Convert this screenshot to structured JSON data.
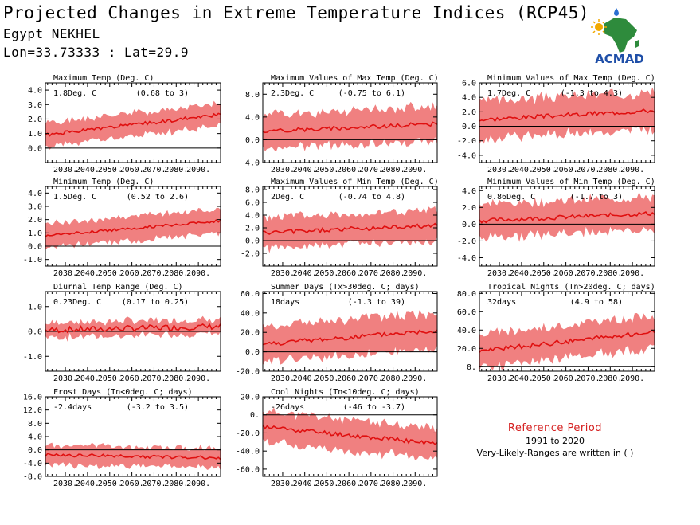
{
  "header": {
    "title": "Projected Changes in Extreme Temperature Indices (RCP45)",
    "station": "Egypt_NEKHEL",
    "coords": "Lon=33.73333 : Lat=29.9"
  },
  "logo": {
    "text": "ACMAD",
    "icon": "africa-map-logo"
  },
  "reference": {
    "title": "Reference Period",
    "years": "1991 to 2020",
    "note": "Very-Likely-Ranges are written in ( )"
  },
  "colors": {
    "band": "#f08080",
    "line": "#e01010",
    "zero_line": "#000000",
    "ref_title": "#d52020"
  },
  "x_ticks": [
    "2030.",
    "2040.",
    "2050.",
    "2060.",
    "2070.",
    "2080.",
    "2090."
  ],
  "chart_data": [
    {
      "type": "line",
      "title": "Maximum Temp (Deg. C)",
      "change": "1.8Deg. C",
      "range": "(0.68 to 3)",
      "xlim": [
        2021,
        2100
      ],
      "ylim": [
        -1.0,
        4.5
      ],
      "yticks": [
        0.0,
        1.0,
        2.0,
        3.0,
        4.0
      ],
      "ytick_labels": [
        "0.0",
        "1.0",
        "2.0",
        "3.0",
        "4.0"
      ],
      "start": 0.9,
      "end": 2.3,
      "band_half": 0.8,
      "noise": 0.12,
      "seed": 1
    },
    {
      "type": "line",
      "title": "Maximum Values of Max Temp (Deg. C)",
      "change": "2.3Deg. C",
      "range": "(-0.75 to 6.1)",
      "xlim": [
        2021,
        2100
      ],
      "ylim": [
        -4.0,
        10.0
      ],
      "yticks": [
        -4.0,
        0.0,
        4.0,
        8.0
      ],
      "ytick_labels": [
        "-4.0",
        "0.0",
        "4.0",
        "8.0"
      ],
      "start": 1.5,
      "end": 2.8,
      "band_half": 3.0,
      "noise": 0.35,
      "seed": 2
    },
    {
      "type": "line",
      "title": "Minimum Values of Max Temp (Deg. C)",
      "change": "1.7Deg. C",
      "range": "(-1.3 to 4.3)",
      "xlim": [
        2021,
        2100
      ],
      "ylim": [
        -5.0,
        6.0
      ],
      "yticks": [
        -4.0,
        -2.0,
        0.0,
        2.0,
        4.0,
        6.0
      ],
      "ytick_labels": [
        "-4.0",
        "-2.0",
        "0.0",
        "2.0",
        "4.0",
        "6.0"
      ],
      "start": 0.9,
      "end": 2.2,
      "band_half": 2.6,
      "noise": 0.3,
      "seed": 3
    },
    {
      "type": "line",
      "title": "Minimum Temp (Deg. C)",
      "change": "1.5Deg. C",
      "range": "(0.52 to 2.6)",
      "xlim": [
        2021,
        2100
      ],
      "ylim": [
        -1.5,
        4.5
      ],
      "yticks": [
        -1.0,
        0.0,
        1.0,
        2.0,
        3.0,
        4.0
      ],
      "ytick_labels": [
        "-1.0",
        "0.0",
        "1.0",
        "2.0",
        "3.0",
        "4.0"
      ],
      "start": 0.8,
      "end": 1.9,
      "band_half": 0.9,
      "noise": 0.1,
      "seed": 4
    },
    {
      "type": "line",
      "title": "Maximum Values of Min Temp (Deg. C)",
      "change": "2Deg. C",
      "range": "(-0.74 to 4.8)",
      "xlim": [
        2021,
        2100
      ],
      "ylim": [
        -4.0,
        8.5
      ],
      "yticks": [
        -2.0,
        0.0,
        2.0,
        4.0,
        6.0,
        8.0
      ],
      "ytick_labels": [
        "-2.0",
        "0.0",
        "2.0",
        "4.0",
        "6.0",
        "8.0"
      ],
      "start": 1.2,
      "end": 2.4,
      "band_half": 2.4,
      "noise": 0.35,
      "seed": 5
    },
    {
      "type": "line",
      "title": "Minimum Values of Min Temp (Deg. C)",
      "change": "0.86Deg. C",
      "range": "(-1.7 to 3)",
      "xlim": [
        2021,
        2100
      ],
      "ylim": [
        -5.0,
        4.5
      ],
      "yticks": [
        -4.0,
        -2.0,
        0.0,
        2.0,
        4.0
      ],
      "ytick_labels": [
        "-4.0",
        "-2.0",
        "0.0",
        "2.0",
        "4.0"
      ],
      "start": 0.4,
      "end": 1.3,
      "band_half": 2.0,
      "noise": 0.25,
      "seed": 6
    },
    {
      "type": "line",
      "title": "Diurnal Temp Range (Deg. C)",
      "change": "0.23Deg. C",
      "range": "(0.17 to 0.25)",
      "xlim": [
        2021,
        2100
      ],
      "ylim": [
        -1.6,
        1.6
      ],
      "yticks": [
        -1.0,
        0.0,
        1.0
      ],
      "ytick_labels": [
        "-1.0",
        "0.0",
        "1.0"
      ],
      "start": 0.05,
      "end": 0.2,
      "band_half": 0.3,
      "noise": 0.12,
      "seed": 7
    },
    {
      "type": "line",
      "title": "Summer Days (Tx>30deg. C; days)",
      "change": "18days",
      "range": "(-1.3 to 39)",
      "xlim": [
        2021,
        2100
      ],
      "ylim": [
        -20.0,
        62.0
      ],
      "yticks": [
        -20.0,
        0.0,
        20.0,
        40.0,
        60.0
      ],
      "ytick_labels": [
        "-20.0",
        "0.0",
        "20.0",
        "40.0",
        "60.0"
      ],
      "start": 8,
      "end": 22,
      "band_half": 18,
      "noise": 2.5,
      "seed": 8
    },
    {
      "type": "line",
      "title": "Tropical Nights (Tn>20deg. C; days)",
      "change": "32days",
      "range": "(4.9 to 58)",
      "xlim": [
        2021,
        2100
      ],
      "ylim": [
        -5.0,
        82.0
      ],
      "yticks": [
        0.0,
        20.0,
        40.0,
        60.0,
        80.0
      ],
      "ytick_labels": [
        "0.",
        "20.0",
        "40.0",
        "60.0",
        "80.0"
      ],
      "start": 17,
      "end": 38,
      "band_half": 18,
      "noise": 2.5,
      "seed": 9
    },
    {
      "type": "line",
      "title": "Frost Days (Tn<0deg. C; days)",
      "change": "-2.4days",
      "range": "(-3.2 to 3.5)",
      "xlim": [
        2021,
        2100
      ],
      "ylim": [
        -8.0,
        16.0
      ],
      "yticks": [
        -8.0,
        -4.0,
        0.0,
        4.0,
        8.0,
        12.0,
        16.0
      ],
      "ytick_labels": [
        "-8.0",
        "-4.0",
        "0.0",
        "4.0",
        "8.0",
        "12.0",
        "16.0"
      ],
      "start": -1.5,
      "end": -2.4,
      "band_half": 3.0,
      "noise": 0.5,
      "seed": 10
    },
    {
      "type": "line",
      "title": "Cool Nights (Tn<10deg. C; days)",
      "change": "-26days",
      "range": "(-46 to -3.7)",
      "xlim": [
        2021,
        2100
      ],
      "ylim": [
        -68.0,
        20.0
      ],
      "yticks": [
        -60.0,
        -40.0,
        -20.0,
        0.0,
        20.0
      ],
      "ytick_labels": [
        "-60.0",
        "-40.0",
        "-20.0",
        "0.",
        "20.0"
      ],
      "start": -13,
      "end": -32,
      "band_half": 17,
      "noise": 2.5,
      "seed": 11
    }
  ]
}
